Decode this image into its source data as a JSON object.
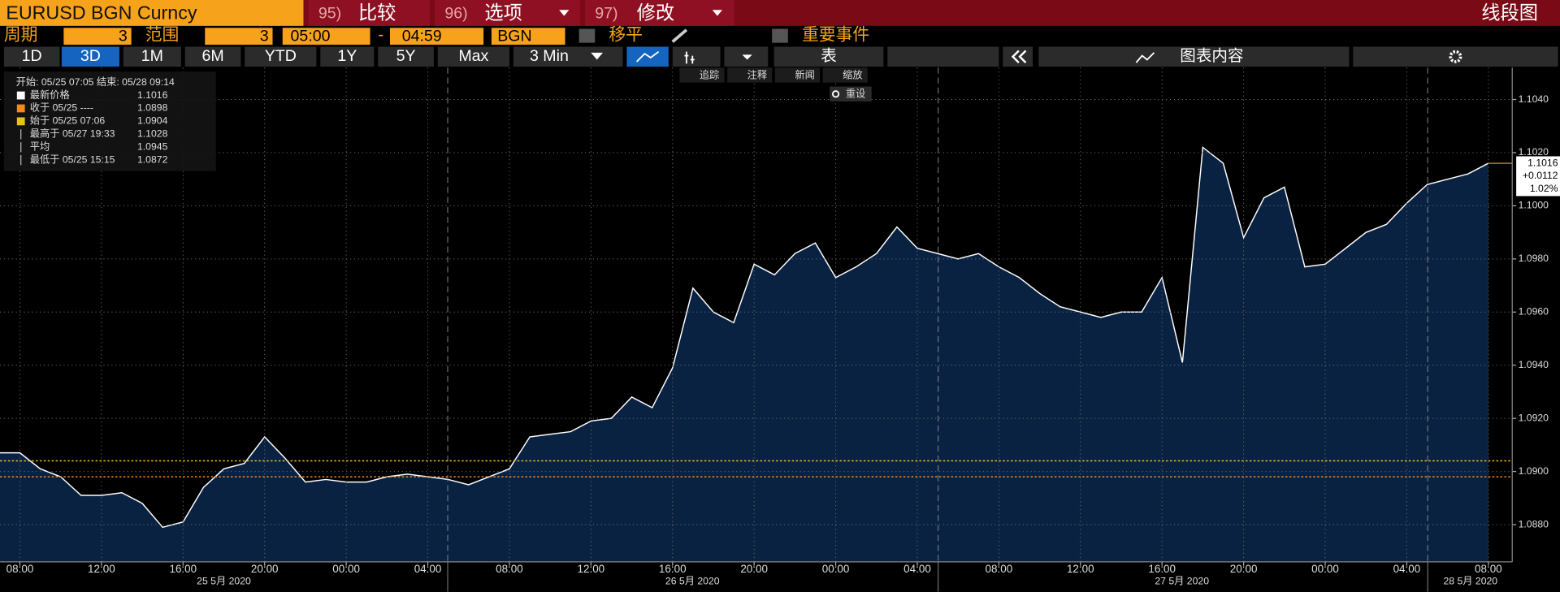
{
  "toolbar": {
    "security": "EURUSD BGN Curncy",
    "menu": [
      {
        "key": "95)",
        "label": "比较"
      },
      {
        "key": "96)",
        "label": "选项"
      },
      {
        "key": "97)",
        "label": "修改"
      }
    ],
    "view_title": "线段图",
    "period_label": "周期",
    "period": 3,
    "range_label": "范围",
    "range": 3,
    "start_time": "05:00",
    "separator": "-",
    "end_time": "04:59",
    "source": "BGN",
    "moving_avg": "移平",
    "events": "重要事件",
    "ranges": [
      "1D",
      "3D",
      "1M",
      "6M",
      "YTD",
      "1Y",
      "5Y",
      "Max"
    ],
    "interval": "3 Min",
    "table": "表",
    "content": "图表内容",
    "tools": [
      "追踪",
      "注释",
      "新闻",
      "缩放"
    ],
    "reset": "重设"
  },
  "chart_data": {
    "type": "area",
    "color": "#ffffff",
    "fill": "#0a2242",
    "legend_header": "开始: 05/25 07:05 结束: 05/28 09:14",
    "stats": [
      {
        "label": "最新价格",
        "value": 1.1016,
        "color": "#ffffff"
      },
      {
        "label": "收于 05/25 ----",
        "value": 1.0898,
        "color": "#f28a1e"
      },
      {
        "label": "始于 05/25 07:06",
        "value": 1.0904,
        "color": "#e8c21a"
      },
      {
        "label": "最高于 05/27 19:33",
        "value": 1.1028
      },
      {
        "label": "平均",
        "value": 1.0945
      },
      {
        "label": "最低于 05/25 15:15",
        "value": 1.0872
      }
    ],
    "price_tag": {
      "change": "+0.0112",
      "percent": "1.02%"
    },
    "categories": [
      null,
      "08:00",
      null,
      null,
      null,
      "12:00",
      null,
      null,
      null,
      "16:00",
      null,
      null,
      null,
      "20:00",
      null,
      null,
      null,
      "00:00",
      null,
      null,
      null,
      "04:00",
      null,
      null,
      null,
      "08:00",
      null,
      null,
      null,
      "12:00",
      null,
      null,
      null,
      "16:00",
      null,
      null,
      null,
      "20:00",
      null,
      null,
      null,
      "00:00",
      null,
      null,
      null,
      "04:00",
      null,
      null,
      null,
      "08:00",
      null,
      null,
      null,
      "12:00",
      null,
      null,
      null,
      "16:00",
      null,
      null,
      null,
      "20:00",
      null,
      null,
      null,
      "00:00",
      null,
      null,
      null,
      "04:00",
      null,
      null,
      null,
      "08:00"
    ],
    "day_labels": [
      "25 5月 2020",
      "26 5月 2020",
      "27 5月 2020",
      "28 5月 2020"
    ],
    "values": [
      1.0907,
      1.0907,
      1.0901,
      1.0898,
      1.0891,
      1.0891,
      1.0892,
      1.0888,
      1.0879,
      1.0881,
      1.0894,
      1.0901,
      1.0903,
      1.0913,
      1.0905,
      1.0896,
      1.0897,
      1.0896,
      1.0896,
      1.0898,
      1.0899,
      1.0898,
      1.0897,
      1.0895,
      1.0898,
      1.0901,
      1.0913,
      1.0914,
      1.0915,
      1.0919,
      1.092,
      1.0928,
      1.0924,
      1.0939,
      1.0969,
      1.096,
      1.0956,
      1.0978,
      1.0974,
      1.0982,
      1.0986,
      1.0973,
      1.0977,
      1.0982,
      1.0992,
      1.0984,
      1.0982,
      1.098,
      1.0982,
      1.0977,
      1.0973,
      1.0967,
      1.0962,
      1.096,
      1.0958,
      1.096,
      1.096,
      1.0973,
      1.0941,
      1.1022,
      1.1016,
      1.0988,
      1.1003,
      1.1007,
      1.0977,
      1.0978,
      1.0984,
      1.099,
      1.0993,
      1.1001,
      1.1008,
      1.101,
      1.1012,
      1.1016
    ],
    "ylim": [
      1.0866,
      1.1052
    ],
    "yticks": [
      {
        "value": 1.088,
        "label": "1.0880"
      },
      {
        "value": 1.09,
        "label": "1.0900"
      },
      {
        "value": 1.092,
        "label": "1.0920"
      },
      {
        "value": 1.094,
        "label": "1.0940"
      },
      {
        "value": 1.096,
        "label": "1.0960"
      },
      {
        "value": 1.098,
        "label": "1.0980"
      },
      {
        "value": 1.1,
        "label": "1.1000"
      },
      {
        "value": 1.102,
        "label": "1.1020"
      },
      {
        "value": 1.104,
        "label": "1.1040"
      }
    ],
    "grid": true
  }
}
